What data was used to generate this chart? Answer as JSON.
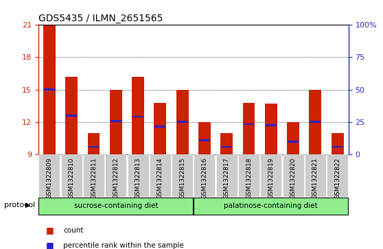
{
  "title": "GDS5435 / ILMN_2651565",
  "samples": [
    "GSM1322809",
    "GSM1322810",
    "GSM1322811",
    "GSM1322812",
    "GSM1322813",
    "GSM1322814",
    "GSM1322815",
    "GSM1322816",
    "GSM1322817",
    "GSM1322818",
    "GSM1322819",
    "GSM1322820",
    "GSM1322821",
    "GSM1322822"
  ],
  "bar_heights": [
    21.0,
    16.2,
    11.0,
    15.0,
    16.2,
    13.8,
    15.0,
    12.0,
    11.0,
    13.8,
    13.7,
    12.0,
    15.0,
    11.0
  ],
  "percentile_values": [
    15.0,
    12.6,
    9.7,
    12.1,
    12.5,
    11.6,
    12.0,
    10.3,
    9.7,
    11.8,
    11.7,
    10.2,
    12.0,
    9.7
  ],
  "ylim_left": [
    9,
    21
  ],
  "ylim_right": [
    0,
    100
  ],
  "yticks_left": [
    9,
    12,
    15,
    18,
    21
  ],
  "yticks_right": [
    0,
    25,
    50,
    75,
    100
  ],
  "ytick_labels_right": [
    "0",
    "25",
    "50",
    "75",
    "100%"
  ],
  "bar_color": "#cc2200",
  "percentile_color": "#2222cc",
  "bg_color": "#ffffff",
  "tick_label_bg": "#cccccc",
  "protocol_groups": [
    {
      "label": "sucrose-containing diet",
      "count": 7,
      "color": "#90ee90"
    },
    {
      "label": "palatinose-containing diet",
      "count": 7,
      "color": "#90ee90"
    }
  ],
  "protocol_label": "protocol",
  "legend_items": [
    {
      "label": "count",
      "color": "#cc2200"
    },
    {
      "label": "percentile rank within the sample",
      "color": "#2222cc"
    }
  ],
  "left_axis_color": "#cc2200",
  "right_axis_color": "#2222cc",
  "bar_width": 0.55,
  "grid_yticks": [
    12,
    15,
    18
  ]
}
